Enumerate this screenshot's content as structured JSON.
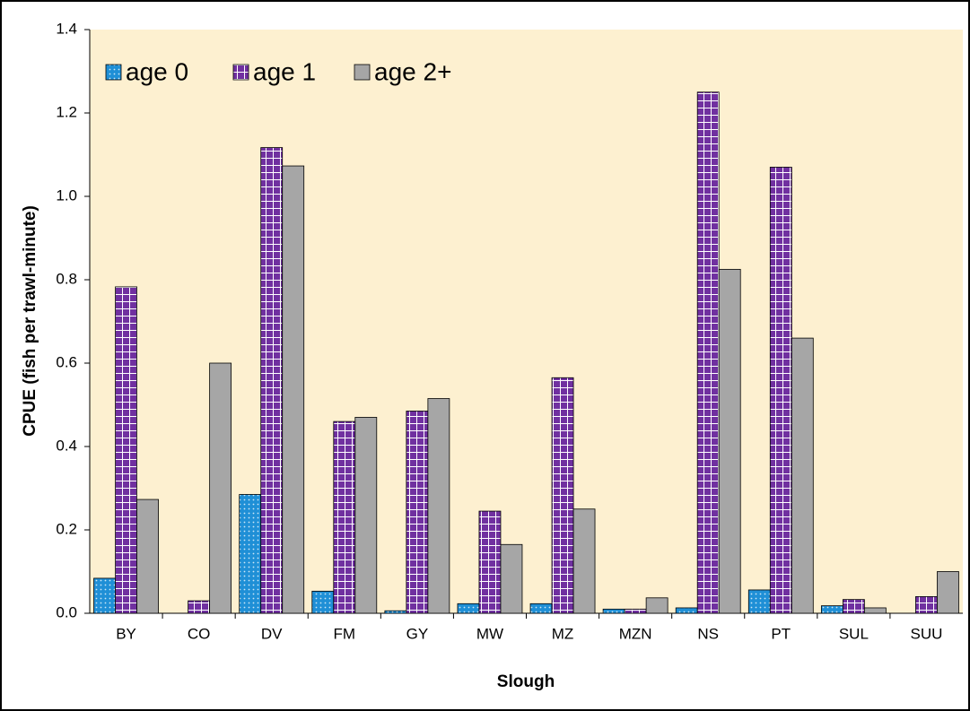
{
  "chart_data": {
    "type": "bar",
    "x_label": "Slough",
    "y_label": "CPUE (fish per trawl-minute)",
    "categories": [
      "BY",
      "CO",
      "DV",
      "FM",
      "GY",
      "MW",
      "MZ",
      "MZN",
      "NS",
      "PT",
      "SUL",
      "SUU"
    ],
    "series": [
      {
        "name": "age 0",
        "color": "#1f8fd6",
        "pattern": "dots",
        "values": [
          0.084,
          0,
          0.285,
          0.053,
          0.006,
          0.023,
          0.023,
          0.01,
          0.013,
          0.056,
          0.018,
          0
        ]
      },
      {
        "name": "age 1",
        "color": "#7030a0",
        "pattern": "grid",
        "values": [
          0.783,
          0.03,
          1.117,
          0.46,
          0.485,
          0.245,
          0.565,
          0.01,
          1.25,
          1.07,
          0.033,
          0.04
        ]
      },
      {
        "name": "age 2+",
        "color": "#a6a6a6",
        "pattern": "none",
        "values": [
          0.273,
          0.6,
          1.073,
          0.47,
          0.515,
          0.165,
          0.25,
          0.037,
          0.825,
          0.66,
          0.013,
          0.1
        ]
      }
    ],
    "ylim": [
      0,
      1.4
    ],
    "yticks": [
      {
        "value": 0,
        "label": "0.0"
      },
      0.2,
      0.4,
      0.6,
      0.8,
      {
        "value": 1,
        "label": "1.0"
      },
      1.2,
      1.4
    ],
    "plot_background": "#fdf0d0",
    "legend": "top-left"
  }
}
